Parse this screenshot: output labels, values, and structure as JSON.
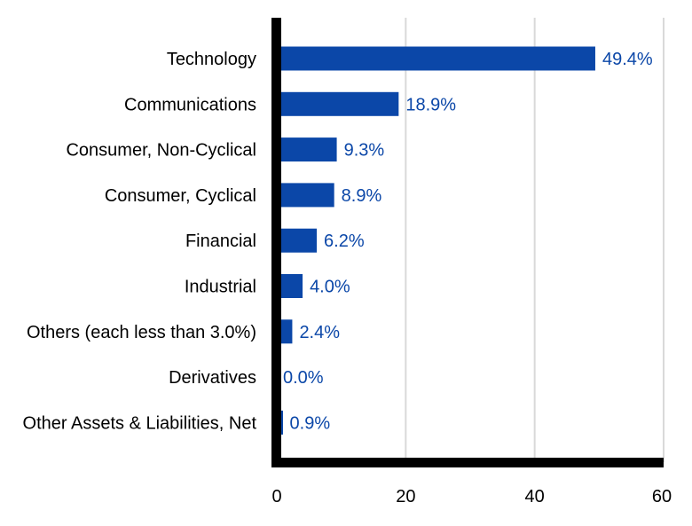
{
  "chart_data": {
    "type": "bar",
    "orientation": "horizontal",
    "categories": [
      "Technology",
      "Communications",
      "Consumer, Non-Cyclical",
      "Consumer, Cyclical",
      "Financial",
      "Industrial",
      "Others (each less than 3.0%)",
      "Derivatives",
      "Other Assets & Liabilities, Net"
    ],
    "values": [
      49.4,
      18.9,
      9.3,
      8.9,
      6.2,
      4.0,
      2.4,
      0.0,
      0.9
    ],
    "data_labels": [
      "49.4%",
      "18.9%",
      "9.3%",
      "8.9%",
      "6.2%",
      "4.0%",
      "2.4%",
      "0.0%",
      "0.9%"
    ],
    "xlim": [
      0,
      60
    ],
    "xticks": [
      0,
      20,
      40,
      60
    ],
    "xtick_labels": [
      "0",
      "20",
      "40",
      "60"
    ],
    "title": "",
    "xlabel": "",
    "ylabel": "",
    "grid": "vertical",
    "legend": "none",
    "colors": {
      "bar": "#0b47a8",
      "data_label": "#0b47a8",
      "axis": "#000000",
      "grid": "#d9d9d9"
    }
  }
}
